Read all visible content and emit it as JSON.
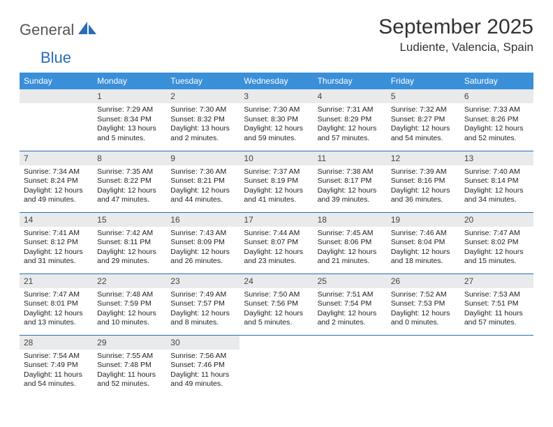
{
  "logo": {
    "general": "General",
    "blue": "Blue"
  },
  "title": "September 2025",
  "location": "Ludiente, Valencia, Spain",
  "header_bg": "#3a8fd9",
  "header_fg": "#ffffff",
  "day_num_bg": "#e9eaeb",
  "rule_color": "#2a6db5",
  "weekdays": [
    "Sunday",
    "Monday",
    "Tuesday",
    "Wednesday",
    "Thursday",
    "Friday",
    "Saturday"
  ],
  "weeks": [
    [
      null,
      {
        "n": "1",
        "sunrise": "Sunrise: 7:29 AM",
        "sunset": "Sunset: 8:34 PM",
        "daylight": "Daylight: 13 hours and 5 minutes."
      },
      {
        "n": "2",
        "sunrise": "Sunrise: 7:30 AM",
        "sunset": "Sunset: 8:32 PM",
        "daylight": "Daylight: 13 hours and 2 minutes."
      },
      {
        "n": "3",
        "sunrise": "Sunrise: 7:30 AM",
        "sunset": "Sunset: 8:30 PM",
        "daylight": "Daylight: 12 hours and 59 minutes."
      },
      {
        "n": "4",
        "sunrise": "Sunrise: 7:31 AM",
        "sunset": "Sunset: 8:29 PM",
        "daylight": "Daylight: 12 hours and 57 minutes."
      },
      {
        "n": "5",
        "sunrise": "Sunrise: 7:32 AM",
        "sunset": "Sunset: 8:27 PM",
        "daylight": "Daylight: 12 hours and 54 minutes."
      },
      {
        "n": "6",
        "sunrise": "Sunrise: 7:33 AM",
        "sunset": "Sunset: 8:26 PM",
        "daylight": "Daylight: 12 hours and 52 minutes."
      }
    ],
    [
      {
        "n": "7",
        "sunrise": "Sunrise: 7:34 AM",
        "sunset": "Sunset: 8:24 PM",
        "daylight": "Daylight: 12 hours and 49 minutes."
      },
      {
        "n": "8",
        "sunrise": "Sunrise: 7:35 AM",
        "sunset": "Sunset: 8:22 PM",
        "daylight": "Daylight: 12 hours and 47 minutes."
      },
      {
        "n": "9",
        "sunrise": "Sunrise: 7:36 AM",
        "sunset": "Sunset: 8:21 PM",
        "daylight": "Daylight: 12 hours and 44 minutes."
      },
      {
        "n": "10",
        "sunrise": "Sunrise: 7:37 AM",
        "sunset": "Sunset: 8:19 PM",
        "daylight": "Daylight: 12 hours and 41 minutes."
      },
      {
        "n": "11",
        "sunrise": "Sunrise: 7:38 AM",
        "sunset": "Sunset: 8:17 PM",
        "daylight": "Daylight: 12 hours and 39 minutes."
      },
      {
        "n": "12",
        "sunrise": "Sunrise: 7:39 AM",
        "sunset": "Sunset: 8:16 PM",
        "daylight": "Daylight: 12 hours and 36 minutes."
      },
      {
        "n": "13",
        "sunrise": "Sunrise: 7:40 AM",
        "sunset": "Sunset: 8:14 PM",
        "daylight": "Daylight: 12 hours and 34 minutes."
      }
    ],
    [
      {
        "n": "14",
        "sunrise": "Sunrise: 7:41 AM",
        "sunset": "Sunset: 8:12 PM",
        "daylight": "Daylight: 12 hours and 31 minutes."
      },
      {
        "n": "15",
        "sunrise": "Sunrise: 7:42 AM",
        "sunset": "Sunset: 8:11 PM",
        "daylight": "Daylight: 12 hours and 29 minutes."
      },
      {
        "n": "16",
        "sunrise": "Sunrise: 7:43 AM",
        "sunset": "Sunset: 8:09 PM",
        "daylight": "Daylight: 12 hours and 26 minutes."
      },
      {
        "n": "17",
        "sunrise": "Sunrise: 7:44 AM",
        "sunset": "Sunset: 8:07 PM",
        "daylight": "Daylight: 12 hours and 23 minutes."
      },
      {
        "n": "18",
        "sunrise": "Sunrise: 7:45 AM",
        "sunset": "Sunset: 8:06 PM",
        "daylight": "Daylight: 12 hours and 21 minutes."
      },
      {
        "n": "19",
        "sunrise": "Sunrise: 7:46 AM",
        "sunset": "Sunset: 8:04 PM",
        "daylight": "Daylight: 12 hours and 18 minutes."
      },
      {
        "n": "20",
        "sunrise": "Sunrise: 7:47 AM",
        "sunset": "Sunset: 8:02 PM",
        "daylight": "Daylight: 12 hours and 15 minutes."
      }
    ],
    [
      {
        "n": "21",
        "sunrise": "Sunrise: 7:47 AM",
        "sunset": "Sunset: 8:01 PM",
        "daylight": "Daylight: 12 hours and 13 minutes."
      },
      {
        "n": "22",
        "sunrise": "Sunrise: 7:48 AM",
        "sunset": "Sunset: 7:59 PM",
        "daylight": "Daylight: 12 hours and 10 minutes."
      },
      {
        "n": "23",
        "sunrise": "Sunrise: 7:49 AM",
        "sunset": "Sunset: 7:57 PM",
        "daylight": "Daylight: 12 hours and 8 minutes."
      },
      {
        "n": "24",
        "sunrise": "Sunrise: 7:50 AM",
        "sunset": "Sunset: 7:56 PM",
        "daylight": "Daylight: 12 hours and 5 minutes."
      },
      {
        "n": "25",
        "sunrise": "Sunrise: 7:51 AM",
        "sunset": "Sunset: 7:54 PM",
        "daylight": "Daylight: 12 hours and 2 minutes."
      },
      {
        "n": "26",
        "sunrise": "Sunrise: 7:52 AM",
        "sunset": "Sunset: 7:53 PM",
        "daylight": "Daylight: 12 hours and 0 minutes."
      },
      {
        "n": "27",
        "sunrise": "Sunrise: 7:53 AM",
        "sunset": "Sunset: 7:51 PM",
        "daylight": "Daylight: 11 hours and 57 minutes."
      }
    ],
    [
      {
        "n": "28",
        "sunrise": "Sunrise: 7:54 AM",
        "sunset": "Sunset: 7:49 PM",
        "daylight": "Daylight: 11 hours and 54 minutes."
      },
      {
        "n": "29",
        "sunrise": "Sunrise: 7:55 AM",
        "sunset": "Sunset: 7:48 PM",
        "daylight": "Daylight: 11 hours and 52 minutes."
      },
      {
        "n": "30",
        "sunrise": "Sunrise: 7:56 AM",
        "sunset": "Sunset: 7:46 PM",
        "daylight": "Daylight: 11 hours and 49 minutes."
      },
      null,
      null,
      null,
      null
    ]
  ]
}
